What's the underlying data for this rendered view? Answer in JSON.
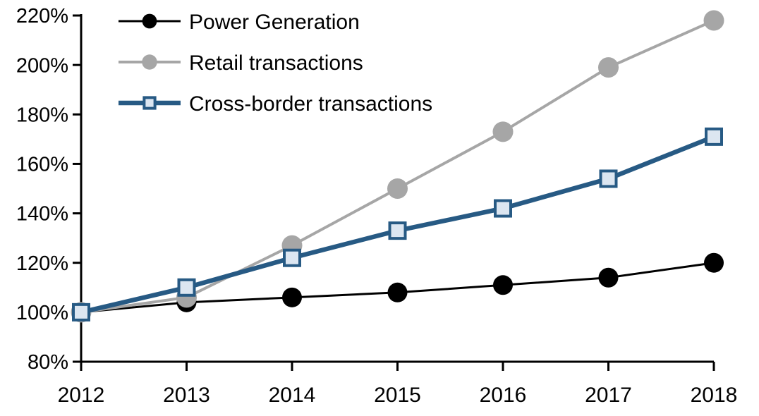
{
  "chart_data": {
    "type": "line",
    "title": "",
    "xlabel": "",
    "ylabel": "",
    "x": [
      2012,
      2013,
      2014,
      2015,
      2016,
      2017,
      2018
    ],
    "x_labels": [
      "2012",
      "2013",
      "2014",
      "2015",
      "2016",
      "2017",
      "2018"
    ],
    "ylim": [
      80,
      220
    ],
    "yticks": [
      {
        "value": 80,
        "label": "80%"
      },
      {
        "value": 100,
        "label": "100%"
      },
      {
        "value": 120,
        "label": "120%"
      },
      {
        "value": 140,
        "label": "140%"
      },
      {
        "value": 160,
        "label": "160%"
      },
      {
        "value": 180,
        "label": "180%"
      },
      {
        "value": 200,
        "label": "200%"
      },
      {
        "value": 220,
        "label": "220%"
      }
    ],
    "grid": false,
    "legend": {
      "position": "top-left-inside"
    },
    "axis_color": "#000000",
    "series": [
      {
        "name": "Power Generation",
        "values": [
          100,
          104,
          106,
          108,
          111,
          114,
          120
        ],
        "color": "#000000",
        "marker": "circle",
        "marker_fill": "#000000",
        "line_width": 3,
        "marker_size": 28
      },
      {
        "name": "Retail transactions",
        "values": [
          100,
          106,
          127,
          150,
          173,
          199,
          218
        ],
        "color": "#a6a6a6",
        "marker": "circle",
        "marker_fill": "#a6a6a6",
        "line_width": 4,
        "marker_size": 29
      },
      {
        "name": "Cross-border transactions",
        "values": [
          100,
          110,
          122,
          133,
          142,
          154,
          171
        ],
        "color": "#275a84",
        "marker": "square",
        "marker_fill": "#dce6f1",
        "line_width": 6.5,
        "marker_size": 26
      }
    ]
  }
}
